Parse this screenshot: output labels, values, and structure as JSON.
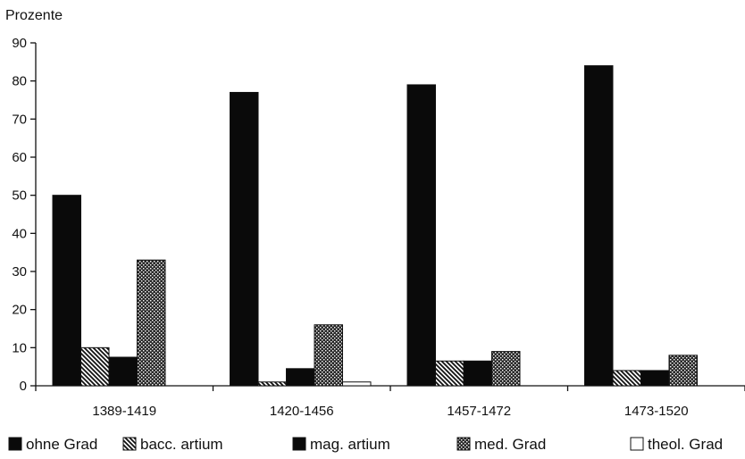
{
  "chart_data": {
    "type": "bar",
    "ylabel": "Prozente",
    "xlabel": "",
    "ylim": [
      0,
      90
    ],
    "yticks": [
      "0",
      "10",
      "20",
      "30",
      "40",
      "50",
      "60",
      "70",
      "80",
      "90"
    ],
    "categories": [
      "1389-1419",
      "1420-1456",
      "1457-1472",
      "1473-1520"
    ],
    "series": [
      {
        "name": "ohne Grad",
        "values": [
          50,
          77,
          79,
          84
        ],
        "pattern": "solid-black"
      },
      {
        "name": "bacc. artium",
        "values": [
          10,
          1,
          6.5,
          4
        ],
        "pattern": "diagonal-hatch"
      },
      {
        "name": "mag. artium",
        "values": [
          7.5,
          4.5,
          6.5,
          4
        ],
        "pattern": "solid-black"
      },
      {
        "name": "med. Grad",
        "values": [
          33,
          16,
          9,
          8
        ],
        "pattern": "crosshatch"
      },
      {
        "name": "theol. Grad",
        "values": [
          0,
          1,
          0,
          0
        ],
        "pattern": "white"
      }
    ],
    "legend_position": "bottom",
    "grid": false
  }
}
